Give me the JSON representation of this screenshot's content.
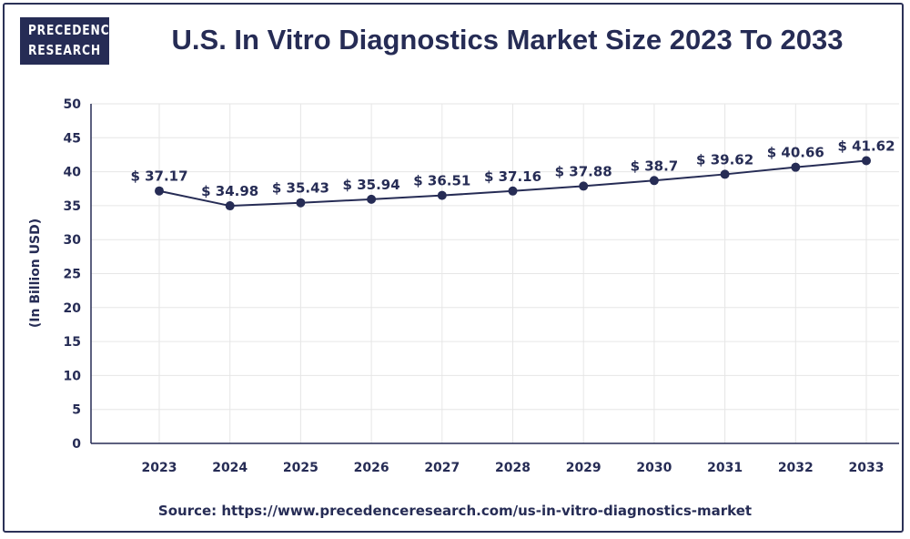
{
  "brand": {
    "line1": "PRECEDENCE",
    "line2": "RESEARCH"
  },
  "title": "U.S. In Vitro Diagnostics Market Size 2023 To 2033",
  "source": "Source: https://www.precedenceresearch.com/us-in-vitro-diagnostics-market",
  "colors": {
    "navy": "#262c55",
    "grid": "#e6e6e6",
    "background": "#ffffff"
  },
  "chart_data": {
    "type": "line",
    "title": "U.S. In Vitro Diagnostics Market Size 2023 To 2033",
    "xlabel": "",
    "ylabel": "(In Billion USD)",
    "categories": [
      "2023",
      "2024",
      "2025",
      "2026",
      "2027",
      "2028",
      "2029",
      "2030",
      "2031",
      "2032",
      "2033"
    ],
    "series": [
      {
        "values": [
          37.17,
          34.98,
          35.43,
          35.94,
          36.51,
          37.16,
          37.88,
          38.7,
          39.62,
          40.66,
          41.62
        ],
        "labels": [
          "$ 37.17",
          "$ 34.98",
          "$ 35.43",
          "$ 35.94",
          "$ 36.51",
          "$ 37.16",
          "$ 37.88",
          "$ 38.7",
          "$ 39.62",
          "$ 40.66",
          "$ 41.62"
        ]
      }
    ],
    "ylim": [
      0,
      50
    ],
    "yticks": [
      0,
      5,
      10,
      15,
      20,
      25,
      30,
      35,
      40,
      45,
      50
    ],
    "grid": true,
    "legend": "none"
  }
}
